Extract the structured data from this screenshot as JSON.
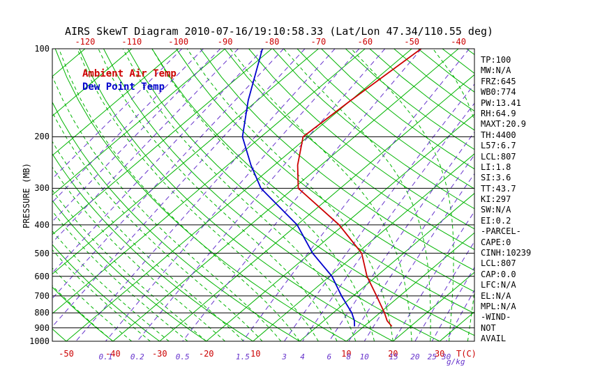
{
  "title": "AIRS SkewT Diagram 2010-07-16/19:10:58.33 (Lat/Lon 47.34/110.55 deg)",
  "legend": {
    "ambient": "Ambient Air Temp",
    "dewpoint": "Dew Point Temp"
  },
  "axes": {
    "pressure_label": "PRESSURE (MB)",
    "pressure_ticks": [
      100,
      200,
      300,
      400,
      500,
      600,
      700,
      800,
      900,
      1000
    ],
    "top_temp_ticks": [
      -120,
      -110,
      -100,
      -90,
      -80,
      -70,
      -60,
      -50,
      -40
    ],
    "bottom_temp_ticks": [
      -50,
      -40,
      -30,
      -20,
      -10,
      10,
      20,
      30
    ],
    "temp_unit_label": "T(C)",
    "mixing_ratio_labels": [
      0.1,
      0.2,
      0.5,
      1.5,
      3,
      4,
      6,
      8,
      10,
      15,
      20,
      25,
      30
    ],
    "mixing_ratio_unit_label": "g/kg"
  },
  "side_panel": [
    "TP:100",
    "MW:N/A",
    "FRZ:645",
    "WB0:774",
    "PW:13.41",
    "RH:64.9",
    "MAXT:20.9",
    "TH:4400",
    "L57:6.7",
    "LCL:807",
    "LI:1.8",
    "SI:3.6",
    "TT:43.7",
    "KI:297",
    "SW:N/A",
    "EI:0.2",
    "-PARCEL-",
    "CAPE:0",
    "CINH:10239",
    "LCL:807",
    "CAP:0.0",
    "LFC:N/A",
    "EL:N/A",
    "MPL:N/A",
    "-WIND-",
    "NOT",
    "AVAIL"
  ],
  "colors": {
    "background_green": "#00b400",
    "mixing_ratio_purple": "#6633cc",
    "ambient_temp_red": "#cc0000",
    "dew_point_blue": "#0000cc",
    "axis_black": "#000000"
  },
  "chart_data": {
    "type": "line",
    "title": "AIRS SkewT Diagram 2010-07-16/19:10:58.33 (Lat/Lon 47.34/110.55 deg)",
    "x_label": "Temperature (C)",
    "y_label": "PRESSURE (MB)",
    "y_scale": "log",
    "y_range": [
      100,
      1000
    ],
    "skew": "45deg isotherms, log-pressure vertical axis",
    "series": [
      {
        "id": "ambient-temp-trace",
        "name": "Ambient Air Temp",
        "color": "#cc0000",
        "points_pressure_mb_temp_c": [
          [
            890,
            16
          ],
          [
            850,
            13.5
          ],
          [
            800,
            11
          ],
          [
            700,
            5
          ],
          [
            600,
            -2
          ],
          [
            500,
            -9
          ],
          [
            400,
            -21
          ],
          [
            300,
            -39
          ],
          [
            250,
            -45
          ],
          [
            200,
            -51
          ],
          [
            150,
            -50
          ],
          [
            100,
            -48
          ]
        ]
      },
      {
        "id": "dew-point-trace",
        "name": "Dew Point Temp",
        "color": "#0000cc",
        "points_pressure_mb_temp_c": [
          [
            890,
            8
          ],
          [
            850,
            6.5
          ],
          [
            800,
            4
          ],
          [
            700,
            -2.5
          ],
          [
            600,
            -9.5
          ],
          [
            500,
            -19.5
          ],
          [
            400,
            -30
          ],
          [
            300,
            -47
          ],
          [
            250,
            -55
          ],
          [
            200,
            -64
          ],
          [
            150,
            -72
          ],
          [
            100,
            -82
          ]
        ]
      }
    ],
    "background": {
      "isotherms_c": [
        -120,
        -110,
        -100,
        -90,
        -80,
        -70,
        -60,
        -50,
        -40,
        -30,
        -20,
        -10,
        0,
        10,
        20,
        30
      ],
      "dry_adiabats_c": [
        -50,
        -40,
        -30,
        -20,
        -10,
        0,
        10,
        20,
        30,
        40,
        50,
        60,
        70,
        80,
        90,
        100,
        110,
        120,
        130,
        140,
        150,
        160,
        170,
        180
      ],
      "moist_adiabats_c": [
        -40,
        -36,
        -32,
        -28,
        -24,
        -20,
        -16,
        -12,
        -8,
        -4,
        0,
        4,
        8,
        12,
        16,
        20,
        24,
        28,
        32,
        36,
        40
      ],
      "mixing_ratio_lines_gkg": [
        0.0002,
        0.0005,
        0.001,
        0.002,
        0.005,
        0.01,
        0.02,
        0.05,
        0.1,
        0.2,
        0.5,
        1.5,
        3,
        4,
        6,
        8,
        10,
        15,
        20,
        25,
        30
      ]
    }
  }
}
